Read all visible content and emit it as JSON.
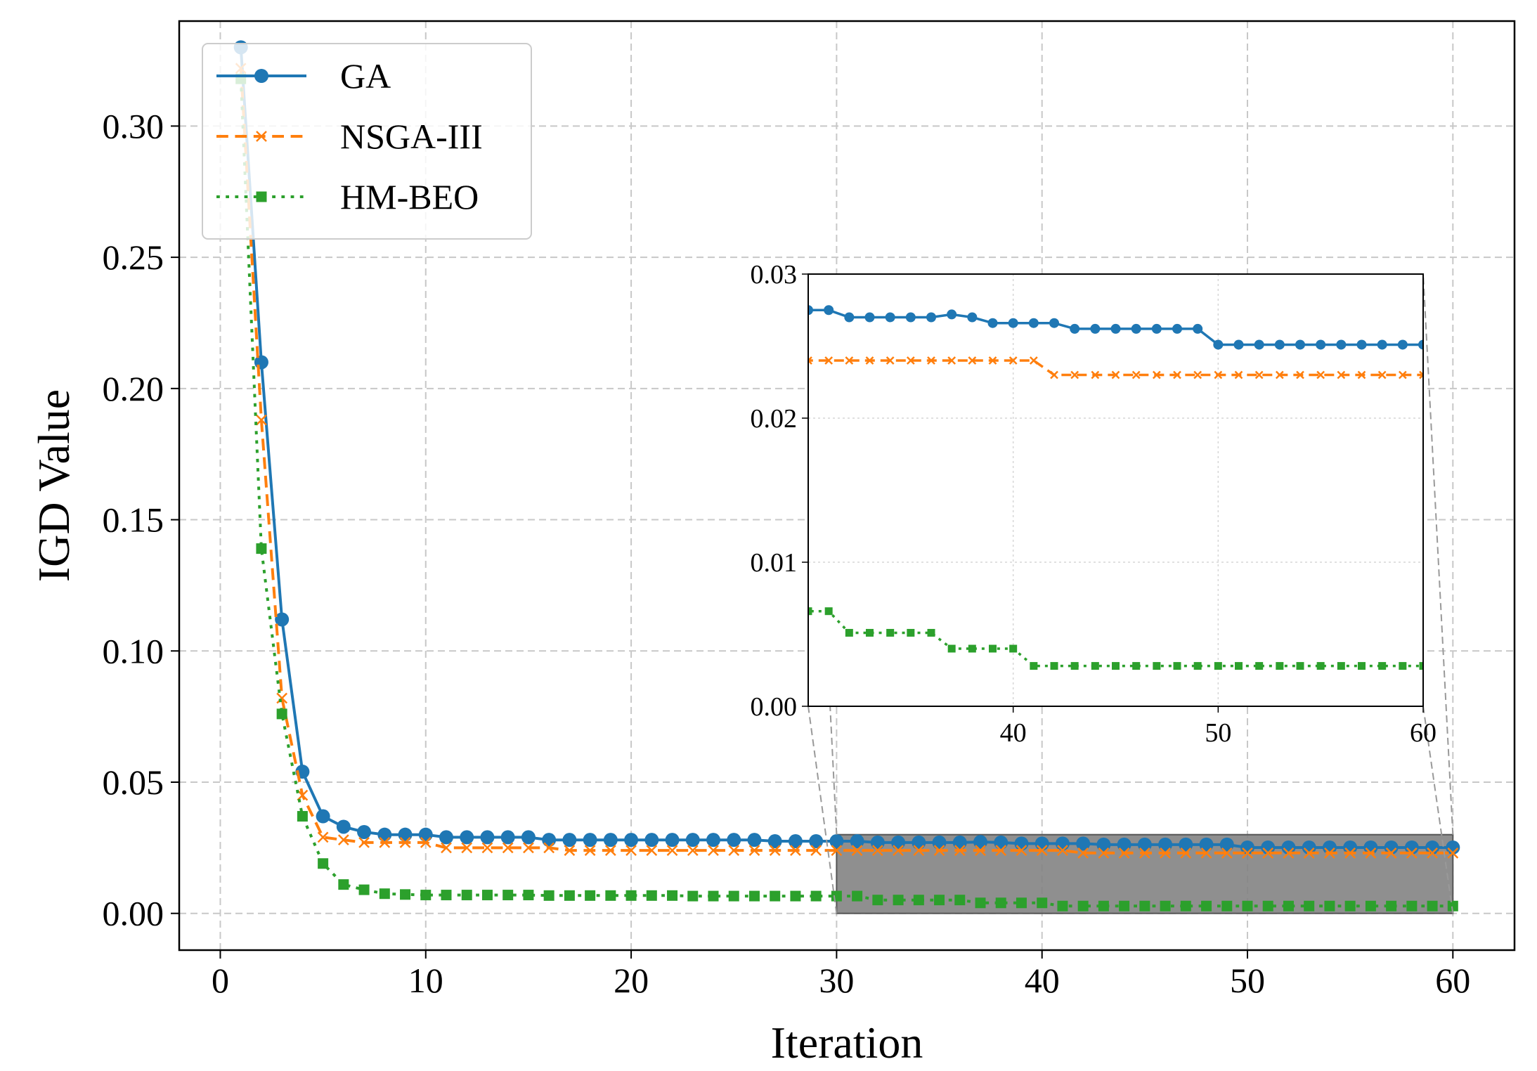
{
  "chart_data": {
    "type": "line",
    "xlabel": "Iteration",
    "ylabel": "IGD Value",
    "xlim": [
      -2,
      63
    ],
    "ylim": [
      -0.014,
      0.34
    ],
    "xticks": [
      0,
      10,
      20,
      30,
      40,
      50,
      60
    ],
    "xtick_labels": [
      "0",
      "10",
      "20",
      "30",
      "40",
      "50",
      "60"
    ],
    "yticks": [
      0.0,
      0.05,
      0.1,
      0.15,
      0.2,
      0.25,
      0.3
    ],
    "ytick_labels": [
      "0.00",
      "0.05",
      "0.10",
      "0.15",
      "0.20",
      "0.25",
      "0.30"
    ],
    "grid": true,
    "legend_position": "top-left",
    "series": [
      {
        "name": "GA",
        "color": "#1f77b4",
        "line_style": "solid",
        "marker": "circle",
        "x": [
          1,
          2,
          3,
          4,
          5,
          6,
          7,
          8,
          9,
          10,
          11,
          12,
          13,
          14,
          15,
          16,
          17,
          18,
          19,
          20,
          21,
          22,
          23,
          24,
          25,
          26,
          27,
          28,
          29,
          30,
          31,
          32,
          33,
          34,
          35,
          36,
          37,
          38,
          39,
          40,
          41,
          42,
          43,
          44,
          45,
          46,
          47,
          48,
          49,
          50,
          51,
          52,
          53,
          54,
          55,
          56,
          57,
          58,
          59,
          60
        ],
        "values": [
          0.33,
          0.21,
          0.112,
          0.054,
          0.037,
          0.033,
          0.031,
          0.03,
          0.03,
          0.03,
          0.029,
          0.029,
          0.029,
          0.029,
          0.029,
          0.028,
          0.028,
          0.028,
          0.028,
          0.028,
          0.028,
          0.028,
          0.028,
          0.028,
          0.028,
          0.028,
          0.0275,
          0.0275,
          0.0275,
          0.0275,
          0.0275,
          0.027,
          0.027,
          0.027,
          0.027,
          0.027,
          0.0272,
          0.027,
          0.0266,
          0.0266,
          0.0266,
          0.0266,
          0.0262,
          0.0262,
          0.0262,
          0.0262,
          0.0262,
          0.0262,
          0.0262,
          0.0251,
          0.0251,
          0.0251,
          0.0251,
          0.0251,
          0.0251,
          0.0251,
          0.0251,
          0.0251,
          0.0251,
          0.0251
        ]
      },
      {
        "name": "NSGA-III",
        "color": "#ff7f0e",
        "line_style": "dashed",
        "marker": "x",
        "x": [
          1,
          2,
          3,
          4,
          5,
          6,
          7,
          8,
          9,
          10,
          11,
          12,
          13,
          14,
          15,
          16,
          17,
          18,
          19,
          20,
          21,
          22,
          23,
          24,
          25,
          26,
          27,
          28,
          29,
          30,
          31,
          32,
          33,
          34,
          35,
          36,
          37,
          38,
          39,
          40,
          41,
          42,
          43,
          44,
          45,
          46,
          47,
          48,
          49,
          50,
          51,
          52,
          53,
          54,
          55,
          56,
          57,
          58,
          59,
          60
        ],
        "values": [
          0.322,
          0.188,
          0.082,
          0.045,
          0.029,
          0.028,
          0.027,
          0.027,
          0.027,
          0.027,
          0.025,
          0.025,
          0.025,
          0.025,
          0.025,
          0.025,
          0.024,
          0.024,
          0.024,
          0.024,
          0.024,
          0.024,
          0.024,
          0.024,
          0.024,
          0.024,
          0.024,
          0.024,
          0.024,
          0.024,
          0.024,
          0.024,
          0.024,
          0.024,
          0.024,
          0.024,
          0.024,
          0.024,
          0.024,
          0.024,
          0.024,
          0.023,
          0.023,
          0.023,
          0.023,
          0.023,
          0.023,
          0.023,
          0.023,
          0.023,
          0.023,
          0.023,
          0.023,
          0.023,
          0.023,
          0.023,
          0.023,
          0.023,
          0.023,
          0.023
        ]
      },
      {
        "name": "HM-BEO",
        "color": "#2ca02c",
        "line_style": "dotted",
        "marker": "square",
        "x": [
          1,
          2,
          3,
          4,
          5,
          6,
          7,
          8,
          9,
          10,
          11,
          12,
          13,
          14,
          15,
          16,
          17,
          18,
          19,
          20,
          21,
          22,
          23,
          24,
          25,
          26,
          27,
          28,
          29,
          30,
          31,
          32,
          33,
          34,
          35,
          36,
          37,
          38,
          39,
          40,
          41,
          42,
          43,
          44,
          45,
          46,
          47,
          48,
          49,
          50,
          51,
          52,
          53,
          54,
          55,
          56,
          57,
          58,
          59,
          60
        ],
        "values": [
          0.318,
          0.139,
          0.076,
          0.037,
          0.019,
          0.011,
          0.009,
          0.0075,
          0.0072,
          0.007,
          0.007,
          0.007,
          0.007,
          0.007,
          0.007,
          0.0068,
          0.0068,
          0.0068,
          0.0068,
          0.0068,
          0.0068,
          0.0068,
          0.0066,
          0.0066,
          0.0066,
          0.0066,
          0.0066,
          0.0066,
          0.0066,
          0.0066,
          0.0066,
          0.0051,
          0.0051,
          0.0051,
          0.0051,
          0.0051,
          0.004,
          0.004,
          0.004,
          0.004,
          0.0028,
          0.0028,
          0.0028,
          0.0028,
          0.0028,
          0.0028,
          0.0028,
          0.0028,
          0.0028,
          0.0028,
          0.0028,
          0.0028,
          0.0028,
          0.0028,
          0.0028,
          0.0028,
          0.0028,
          0.0028,
          0.0028,
          0.0028
        ]
      }
    ],
    "highlight_region": {
      "x": [
        30,
        60
      ],
      "y": [
        0.0,
        0.03
      ]
    },
    "inset": {
      "xlim": [
        30,
        60
      ],
      "ylim": [
        0.0,
        0.03
      ],
      "xticks": [
        40,
        50,
        60
      ],
      "xtick_labels": [
        "40",
        "50",
        "60"
      ],
      "yticks": [
        0.0,
        0.01,
        0.02,
        0.03
      ],
      "ytick_labels": [
        "0.00",
        "0.01",
        "0.02",
        "0.03"
      ]
    }
  }
}
